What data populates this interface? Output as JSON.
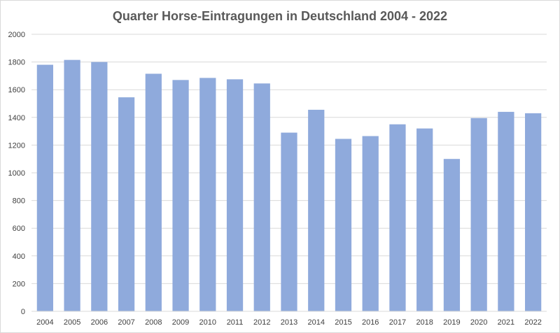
{
  "chart_data": {
    "type": "bar",
    "title": "Quarter Horse-Eintragungen in Deutschland 2004 - 2022",
    "xlabel": "",
    "ylabel": "",
    "categories": [
      "2004",
      "2005",
      "2006",
      "2007",
      "2008",
      "2009",
      "2010",
      "2011",
      "2012",
      "2013",
      "2014",
      "2015",
      "2016",
      "2017",
      "2018",
      "2019",
      "2020",
      "2021",
      "2022"
    ],
    "values": [
      1780,
      1815,
      1800,
      1545,
      1715,
      1670,
      1685,
      1675,
      1645,
      1290,
      1455,
      1245,
      1265,
      1350,
      1320,
      1100,
      1395,
      1440,
      1430
    ],
    "ylim": [
      0,
      2000
    ],
    "yticks": [
      "0",
      "200",
      "400",
      "600",
      "800",
      "1000",
      "1200",
      "1400",
      "1600",
      "1800",
      "2000"
    ],
    "grid": true,
    "legend": "none",
    "bar_color": "#8faadc",
    "grid_color": "#d9d9d9"
  }
}
